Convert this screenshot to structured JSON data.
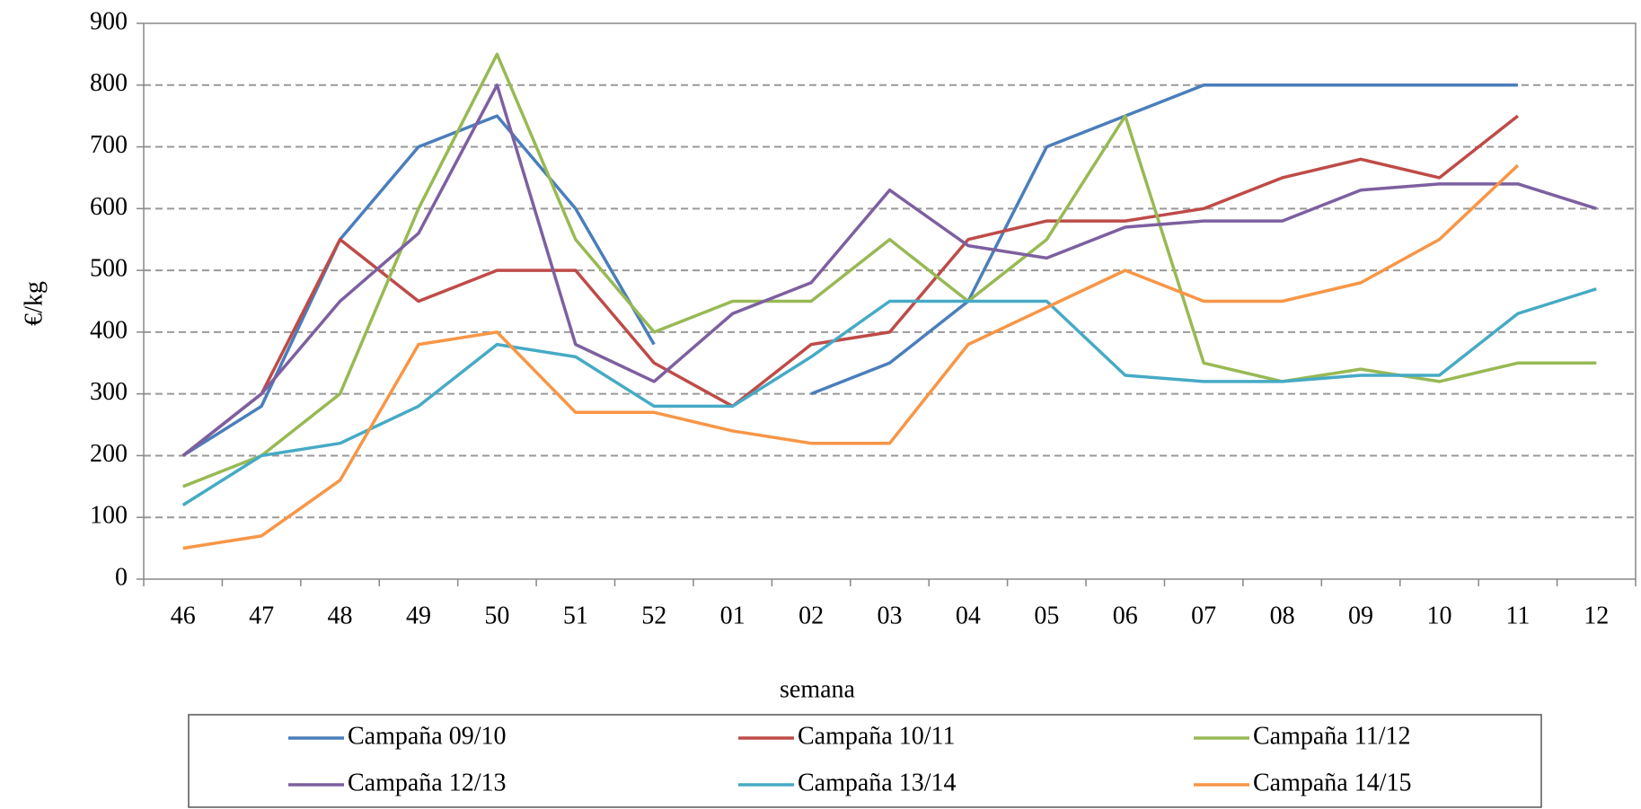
{
  "chart_data": {
    "type": "line",
    "xlabel": "semana",
    "ylabel": "€/kg",
    "categories": [
      "46",
      "47",
      "48",
      "49",
      "50",
      "51",
      "52",
      "01",
      "02",
      "03",
      "04",
      "05",
      "06",
      "07",
      "08",
      "09",
      "10",
      "11",
      "12"
    ],
    "ylim": [
      0,
      900
    ],
    "yticks": [
      0,
      100,
      200,
      300,
      400,
      500,
      600,
      700,
      800,
      900
    ],
    "grid": true,
    "series": [
      {
        "name": "Campaña 09/10",
        "color": "#4a7ebb",
        "values": [
          200,
          280,
          550,
          700,
          750,
          600,
          380,
          null,
          300,
          350,
          450,
          700,
          750,
          800,
          800,
          800,
          800,
          800,
          null
        ]
      },
      {
        "name": "Campaña 10/11",
        "color": "#be4b48",
        "values": [
          200,
          300,
          550,
          450,
          500,
          500,
          350,
          280,
          380,
          400,
          550,
          580,
          580,
          600,
          650,
          680,
          650,
          750,
          null
        ]
      },
      {
        "name": "Campaña 11/12",
        "color": "#98b954",
        "values": [
          150,
          200,
          300,
          600,
          850,
          550,
          400,
          450,
          450,
          550,
          450,
          550,
          750,
          350,
          320,
          340,
          320,
          350,
          350
        ]
      },
      {
        "name": "Campaña 12/13",
        "color": "#7d60a0",
        "values": [
          200,
          300,
          450,
          560,
          800,
          380,
          320,
          430,
          480,
          630,
          540,
          520,
          570,
          580,
          580,
          630,
          640,
          640,
          600
        ]
      },
      {
        "name": "Campaña 13/14",
        "color": "#46aac5",
        "values": [
          120,
          200,
          220,
          280,
          380,
          360,
          280,
          280,
          360,
          450,
          450,
          450,
          330,
          320,
          320,
          330,
          330,
          430,
          470
        ]
      },
      {
        "name": "Campaña 14/15",
        "color": "#f79646",
        "values": [
          50,
          70,
          160,
          380,
          400,
          270,
          270,
          240,
          220,
          220,
          380,
          440,
          500,
          450,
          450,
          480,
          550,
          670,
          null
        ]
      }
    ]
  }
}
